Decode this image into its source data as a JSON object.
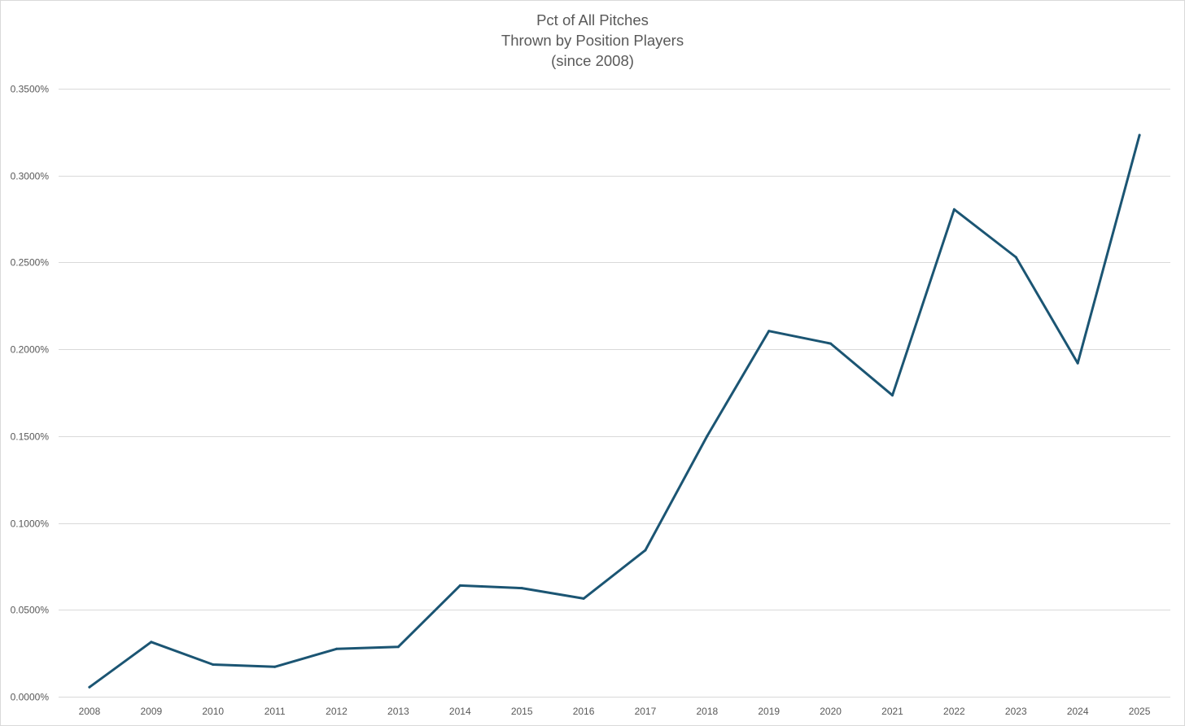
{
  "chart_data": {
    "type": "line",
    "title_lines": [
      "Pct of All Pitches",
      "Thrown by Position Players",
      "(since 2008)"
    ],
    "xlabel": "",
    "ylabel": "",
    "categories": [
      "2008",
      "2009",
      "2010",
      "2011",
      "2012",
      "2013",
      "2014",
      "2015",
      "2016",
      "2017",
      "2018",
      "2019",
      "2020",
      "2021",
      "2022",
      "2023",
      "2024",
      "2025"
    ],
    "series": [
      {
        "values": [
          0.0055,
          0.0315,
          0.0185,
          0.0172,
          0.0275,
          0.0287,
          0.064,
          0.0625,
          0.0565,
          0.0843,
          0.15,
          0.2105,
          0.2033,
          0.1735,
          0.2805,
          0.253,
          0.192,
          0.3233
        ],
        "color": "#1b5573"
      }
    ],
    "ylim": [
      0,
      0.35
    ],
    "yticks": [
      0,
      0.05,
      0.1,
      0.15,
      0.2,
      0.25,
      0.3,
      0.35
    ],
    "ytick_labels": [
      "0.0000%",
      "0.0500%",
      "0.1000%",
      "0.1500%",
      "0.2000%",
      "0.2500%",
      "0.3000%",
      "0.3500%"
    ],
    "grid": true,
    "gridline_color": "#d9d9d9",
    "tick_label_color": "#595959",
    "legend": "none"
  }
}
